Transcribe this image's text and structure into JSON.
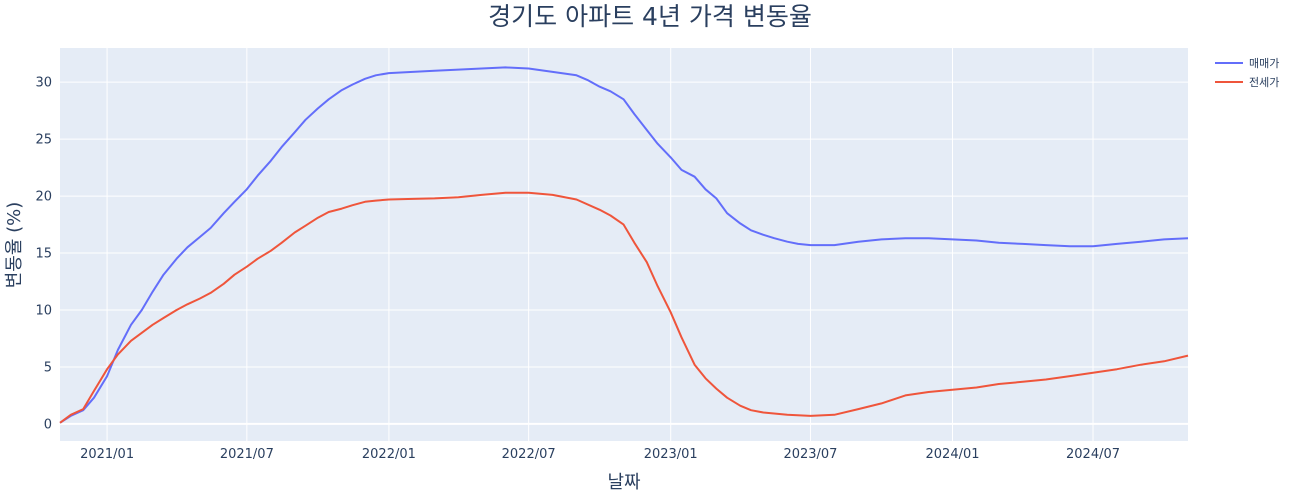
{
  "chart_data": {
    "type": "line",
    "title": "경기도 아파트 4년 가격 변동율",
    "xlabel": "날짜",
    "ylabel": "변동율 (%)",
    "xlim": [
      "2020-11-01",
      "2024-11-01"
    ],
    "ylim": [
      -1.5,
      33.0
    ],
    "grid": true,
    "legend_position": "top-right",
    "y_ticks": [
      0,
      5,
      10,
      15,
      20,
      25,
      30
    ],
    "x_ticks": [
      {
        "date": "2021-01-01",
        "label": "2021/01"
      },
      {
        "date": "2021-07-01",
        "label": "2021/07"
      },
      {
        "date": "2022-01-01",
        "label": "2022/01"
      },
      {
        "date": "2022-07-01",
        "label": "2022/07"
      },
      {
        "date": "2023-01-01",
        "label": "2023/01"
      },
      {
        "date": "2023-07-01",
        "label": "2023/07"
      },
      {
        "date": "2024-01-01",
        "label": "2024/01"
      },
      {
        "date": "2024-07-01",
        "label": "2024/07"
      }
    ],
    "series": [
      {
        "name": "매매가",
        "color": "#636efa",
        "points": [
          [
            "2020-11-01",
            0.1
          ],
          [
            "2020-11-15",
            0.7
          ],
          [
            "2020-12-01",
            1.2
          ],
          [
            "2020-12-15",
            2.3
          ],
          [
            "2021-01-01",
            4.2
          ],
          [
            "2021-01-15",
            6.5
          ],
          [
            "2021-02-01",
            8.7
          ],
          [
            "2021-02-15",
            10.0
          ],
          [
            "2021-03-01",
            11.6
          ],
          [
            "2021-03-15",
            13.1
          ],
          [
            "2021-04-01",
            14.5
          ],
          [
            "2021-04-15",
            15.5
          ],
          [
            "2021-05-01",
            16.4
          ],
          [
            "2021-05-15",
            17.2
          ],
          [
            "2021-06-01",
            18.5
          ],
          [
            "2021-06-15",
            19.5
          ],
          [
            "2021-07-01",
            20.6
          ],
          [
            "2021-07-15",
            21.8
          ],
          [
            "2021-08-01",
            23.1
          ],
          [
            "2021-08-15",
            24.3
          ],
          [
            "2021-09-01",
            25.6
          ],
          [
            "2021-09-15",
            26.7
          ],
          [
            "2021-10-01",
            27.7
          ],
          [
            "2021-10-15",
            28.5
          ],
          [
            "2021-11-01",
            29.3
          ],
          [
            "2021-11-15",
            29.8
          ],
          [
            "2021-12-01",
            30.3
          ],
          [
            "2021-12-15",
            30.6
          ],
          [
            "2022-01-01",
            30.8
          ],
          [
            "2022-02-01",
            30.9
          ],
          [
            "2022-03-01",
            31.0
          ],
          [
            "2022-04-01",
            31.1
          ],
          [
            "2022-05-01",
            31.2
          ],
          [
            "2022-06-01",
            31.3
          ],
          [
            "2022-07-01",
            31.2
          ],
          [
            "2022-08-01",
            30.9
          ],
          [
            "2022-09-01",
            30.6
          ],
          [
            "2022-09-15",
            30.2
          ],
          [
            "2022-10-01",
            29.6
          ],
          [
            "2022-10-15",
            29.2
          ],
          [
            "2022-11-01",
            28.5
          ],
          [
            "2022-11-15",
            27.2
          ],
          [
            "2022-12-01",
            25.8
          ],
          [
            "2022-12-15",
            24.6
          ],
          [
            "2023-01-01",
            23.4
          ],
          [
            "2023-01-15",
            22.3
          ],
          [
            "2023-02-01",
            21.7
          ],
          [
            "2023-02-15",
            20.6
          ],
          [
            "2023-03-01",
            19.8
          ],
          [
            "2023-03-15",
            18.5
          ],
          [
            "2023-04-01",
            17.6
          ],
          [
            "2023-04-15",
            17.0
          ],
          [
            "2023-05-01",
            16.6
          ],
          [
            "2023-05-15",
            16.3
          ],
          [
            "2023-06-01",
            16.0
          ],
          [
            "2023-06-15",
            15.8
          ],
          [
            "2023-07-01",
            15.7
          ],
          [
            "2023-08-01",
            15.7
          ],
          [
            "2023-09-01",
            16.0
          ],
          [
            "2023-10-01",
            16.2
          ],
          [
            "2023-11-01",
            16.3
          ],
          [
            "2023-12-01",
            16.3
          ],
          [
            "2024-01-01",
            16.2
          ],
          [
            "2024-02-01",
            16.1
          ],
          [
            "2024-03-01",
            15.9
          ],
          [
            "2024-04-01",
            15.8
          ],
          [
            "2024-05-01",
            15.7
          ],
          [
            "2024-06-01",
            15.6
          ],
          [
            "2024-07-01",
            15.6
          ],
          [
            "2024-08-01",
            15.8
          ],
          [
            "2024-09-01",
            16.0
          ],
          [
            "2024-10-01",
            16.2
          ],
          [
            "2024-11-01",
            16.3
          ]
        ]
      },
      {
        "name": "전세가",
        "color": "#ef553b",
        "points": [
          [
            "2020-11-01",
            0.1
          ],
          [
            "2020-11-15",
            0.8
          ],
          [
            "2020-12-01",
            1.3
          ],
          [
            "2020-12-15",
            2.9
          ],
          [
            "2021-01-01",
            4.8
          ],
          [
            "2021-01-15",
            6.1
          ],
          [
            "2021-02-01",
            7.3
          ],
          [
            "2021-02-15",
            8.0
          ],
          [
            "2021-03-01",
            8.7
          ],
          [
            "2021-03-15",
            9.3
          ],
          [
            "2021-04-01",
            10.0
          ],
          [
            "2021-04-15",
            10.5
          ],
          [
            "2021-05-01",
            11.0
          ],
          [
            "2021-05-15",
            11.5
          ],
          [
            "2021-06-01",
            12.3
          ],
          [
            "2021-06-15",
            13.1
          ],
          [
            "2021-07-01",
            13.8
          ],
          [
            "2021-07-15",
            14.5
          ],
          [
            "2021-08-01",
            15.2
          ],
          [
            "2021-08-15",
            15.9
          ],
          [
            "2021-09-01",
            16.8
          ],
          [
            "2021-09-15",
            17.4
          ],
          [
            "2021-10-01",
            18.1
          ],
          [
            "2021-10-15",
            18.6
          ],
          [
            "2021-11-01",
            18.9
          ],
          [
            "2021-11-15",
            19.2
          ],
          [
            "2021-12-01",
            19.5
          ],
          [
            "2021-12-15",
            19.6
          ],
          [
            "2022-01-01",
            19.7
          ],
          [
            "2022-02-01",
            19.75
          ],
          [
            "2022-03-01",
            19.8
          ],
          [
            "2022-04-01",
            19.9
          ],
          [
            "2022-05-01",
            20.1
          ],
          [
            "2022-06-01",
            20.3
          ],
          [
            "2022-07-01",
            20.3
          ],
          [
            "2022-08-01",
            20.1
          ],
          [
            "2022-09-01",
            19.7
          ],
          [
            "2022-10-01",
            18.8
          ],
          [
            "2022-10-15",
            18.3
          ],
          [
            "2022-11-01",
            17.5
          ],
          [
            "2022-11-15",
            15.9
          ],
          [
            "2022-12-01",
            14.2
          ],
          [
            "2022-12-15",
            12.1
          ],
          [
            "2023-01-01",
            9.8
          ],
          [
            "2023-01-15",
            7.6
          ],
          [
            "2023-02-01",
            5.2
          ],
          [
            "2023-02-15",
            4.0
          ],
          [
            "2023-03-01",
            3.1
          ],
          [
            "2023-03-15",
            2.3
          ],
          [
            "2023-04-01",
            1.6
          ],
          [
            "2023-04-15",
            1.2
          ],
          [
            "2023-05-01",
            1.0
          ],
          [
            "2023-06-01",
            0.8
          ],
          [
            "2023-07-01",
            0.7
          ],
          [
            "2023-08-01",
            0.8
          ],
          [
            "2023-09-01",
            1.3
          ],
          [
            "2023-10-01",
            1.8
          ],
          [
            "2023-11-01",
            2.5
          ],
          [
            "2023-12-01",
            2.8
          ],
          [
            "2024-01-01",
            3.0
          ],
          [
            "2024-02-01",
            3.2
          ],
          [
            "2024-03-01",
            3.5
          ],
          [
            "2024-04-01",
            3.7
          ],
          [
            "2024-05-01",
            3.9
          ],
          [
            "2024-06-01",
            4.2
          ],
          [
            "2024-07-01",
            4.5
          ],
          [
            "2024-08-01",
            4.8
          ],
          [
            "2024-09-01",
            5.2
          ],
          [
            "2024-10-01",
            5.5
          ],
          [
            "2024-11-01",
            6.0
          ]
        ]
      }
    ]
  }
}
